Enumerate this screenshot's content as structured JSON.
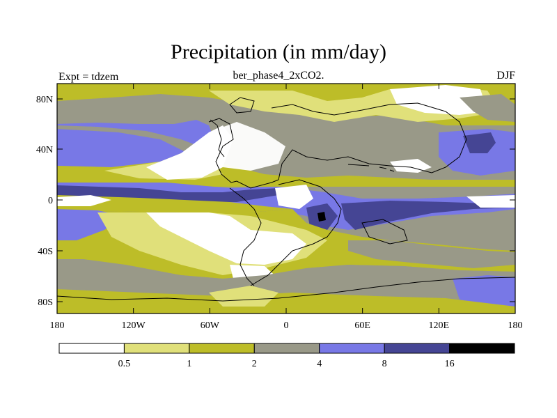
{
  "title": "Precipitation (in mm/day)",
  "subtitle": "ber_phase4_2xCO2.",
  "left_label": "Expt = tdzem",
  "right_label": "DJF",
  "y_ticks": [
    "80N",
    "40N",
    "0",
    "40S",
    "80S"
  ],
  "x_ticks": [
    "180",
    "120W",
    "60W",
    "0",
    "60E",
    "120E",
    "180"
  ],
  "colorbar": {
    "labels": [
      "0.5",
      "1",
      "2",
      "4",
      "8",
      "16"
    ],
    "colors": [
      "#ffffff",
      "#e0e07a",
      "#bdbd28",
      "#999988",
      "#7878e6",
      "#454594",
      "#000000"
    ]
  },
  "chart_data": {
    "type": "heatmap",
    "title": "Precipitation (in mm/day)",
    "subtitle": "ber_phase4_2xCO2.",
    "experiment": "Expt = tdzem",
    "season": "DJF",
    "x_range": [
      -180,
      180
    ],
    "y_range": [
      -90,
      90
    ],
    "levels": [
      0.5,
      1,
      2,
      4,
      8,
      16
    ]
  }
}
